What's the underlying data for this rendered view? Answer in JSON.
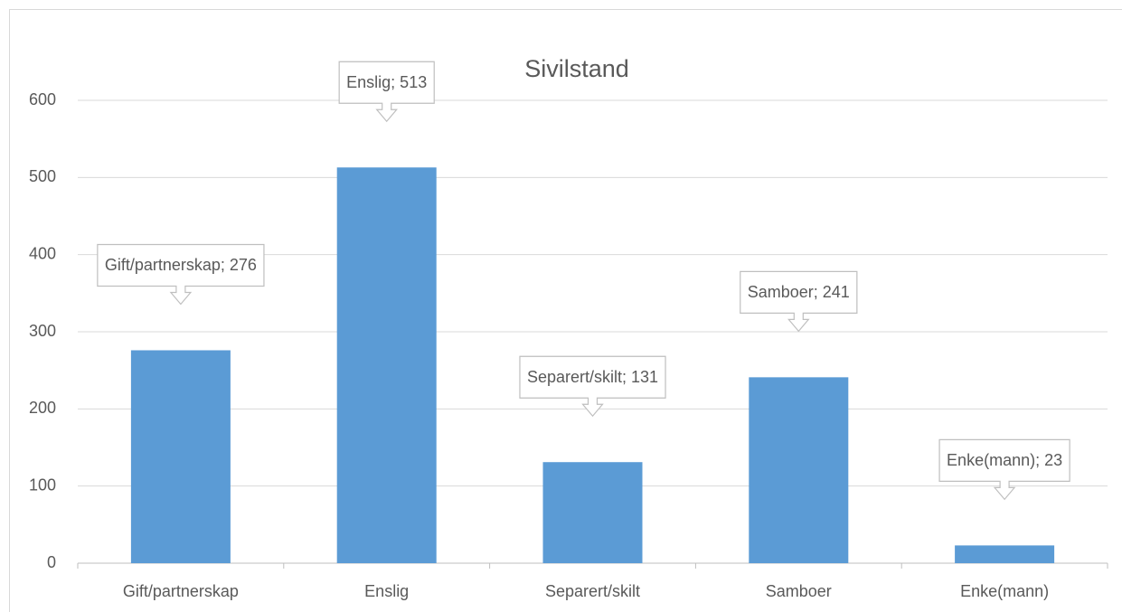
{
  "chart_data": {
    "type": "bar",
    "title": "Sivilstand",
    "categories": [
      "Gift/partnerskap",
      "Enslig",
      "Separert/skilt",
      "Samboer",
      "Enke(mann)"
    ],
    "values": [
      276,
      513,
      131,
      241,
      23
    ],
    "value_labels": [
      "Gift/partnerskap; 276",
      "Enslig; 513",
      "Separert/skilt; 131",
      "Samboer; 241",
      "Enke(mann); 23"
    ],
    "color": "#5b9bd5",
    "ylim": [
      0,
      600
    ],
    "yticks": [
      0,
      100,
      200,
      300,
      400,
      500,
      600
    ],
    "grid": true
  }
}
